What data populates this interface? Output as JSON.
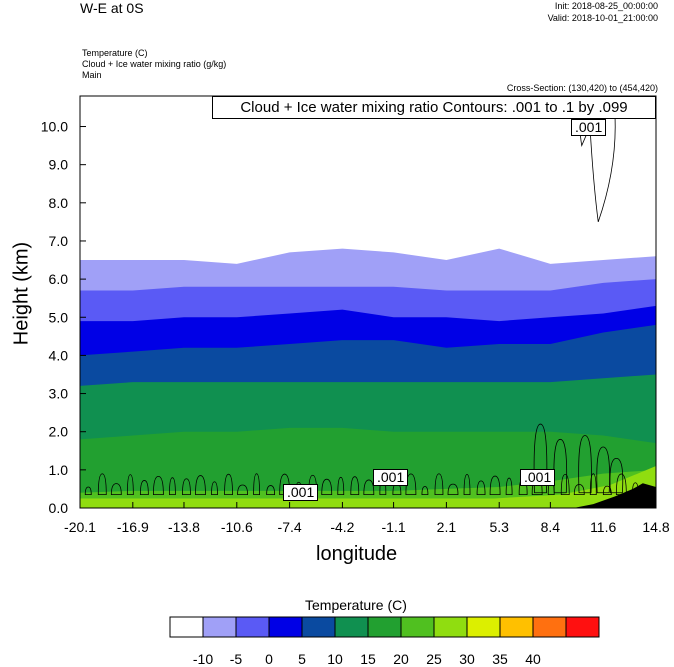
{
  "header": {
    "title": "W-E at 0S",
    "init": "Init: 2018-08-25_00:00:00",
    "valid": "Valid: 2018-10-01_21:00:00",
    "fields": [
      "Temperature   (C)",
      "Cloud + Ice water mixing ratio   (g/kg)",
      "Main"
    ],
    "cross_section": "Cross-Section: (130,420) to (454,420)"
  },
  "contour_info": "Cloud + Ice water mixing ratio Contours: .001 to .1 by .099",
  "contour_labels": [
    ".001",
    ".001",
    ".001",
    ".001"
  ],
  "colorbar": {
    "title": "Temperature  (C)",
    "labels": [
      "-10",
      "-5",
      "0",
      "5",
      "10",
      "15",
      "20",
      "25",
      "30",
      "35",
      "40"
    ],
    "colors": [
      "#ffffff",
      "#a0a0f7",
      "#5a5af5",
      "#0000e6",
      "#0a4aa0",
      "#109050",
      "#22a030",
      "#50c020",
      "#90dd10",
      "#dcef00",
      "#ffc000",
      "#ff7010",
      "#ff1010"
    ]
  },
  "chart_data": {
    "type": "heatmap",
    "title": "W-E at 0S",
    "xlabel": "longitude",
    "ylabel": "Height (km)",
    "xlim": [
      -20.1,
      14.8
    ],
    "ylim": [
      0.0,
      10.8
    ],
    "x_ticks": [
      "-20.1",
      "-16.9",
      "-13.8",
      "-10.6",
      "-7.4",
      "-4.2",
      "-1.1",
      "2.1",
      "5.3",
      "8.4",
      "11.6",
      "14.8"
    ],
    "y_ticks": [
      "0.0",
      "1.0",
      "2.0",
      "3.0",
      "4.0",
      "5.0",
      "6.0",
      "7.0",
      "8.0",
      "9.0",
      "10.0"
    ],
    "fill_field": "Temperature (C)",
    "x": [
      -20.1,
      -16.9,
      -13.8,
      -10.6,
      -7.4,
      -4.2,
      -1.1,
      2.1,
      5.3,
      8.4,
      11.6,
      14.8
    ],
    "isotherm_heights_km": [
      {
        "temp": 25,
        "heights": [
          0.4,
          0.45,
          0.45,
          0.45,
          0.45,
          0.45,
          0.45,
          0.5,
          0.55,
          0.7,
          0.9,
          1.0
        ]
      },
      {
        "temp": 20,
        "heights": [
          1.8,
          1.9,
          2.0,
          2.0,
          2.1,
          2.1,
          2.0,
          2.0,
          2.0,
          2.0,
          1.9,
          1.7
        ]
      },
      {
        "temp": 15,
        "heights": [
          3.2,
          3.3,
          3.3,
          3.3,
          3.3,
          3.3,
          3.3,
          3.3,
          3.3,
          3.3,
          3.4,
          3.5
        ]
      },
      {
        "temp": 10,
        "heights": [
          4.0,
          4.1,
          4.2,
          4.2,
          4.3,
          4.4,
          4.4,
          4.2,
          4.3,
          4.3,
          4.6,
          4.8
        ]
      },
      {
        "temp": 5,
        "heights": [
          4.9,
          4.9,
          5.0,
          5.0,
          5.1,
          5.2,
          5.0,
          5.0,
          4.9,
          5.0,
          5.1,
          5.3
        ]
      },
      {
        "temp": 0,
        "heights": [
          5.7,
          5.7,
          5.8,
          5.8,
          5.8,
          5.8,
          5.8,
          5.7,
          5.7,
          5.7,
          5.9,
          6.0
        ]
      },
      {
        "temp": -5,
        "heights": [
          6.5,
          6.5,
          6.5,
          6.4,
          6.7,
          6.8,
          6.7,
          6.5,
          6.8,
          6.4,
          6.5,
          6.6
        ]
      }
    ],
    "overlay": "Cloud + Ice water mixing ratio contours",
    "contour_levels": [
      0.001,
      0.1
    ],
    "contour_interval": 0.099
  }
}
